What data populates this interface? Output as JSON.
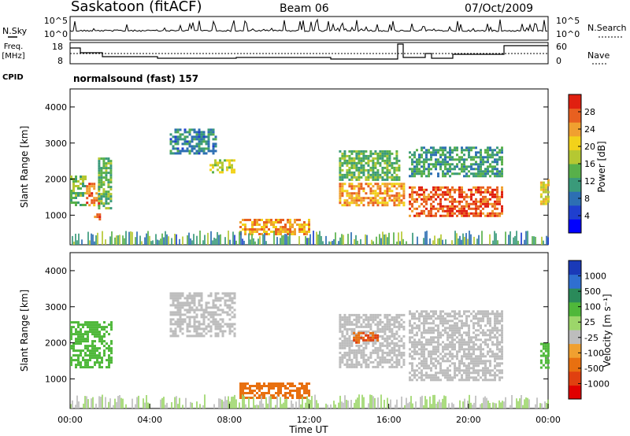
{
  "header": {
    "station": "Saskatoon (fitACF)",
    "beam": "Beam 06",
    "date": "07/Oct/2009"
  },
  "status_panels": {
    "nsky_label": "N.Sky",
    "nsearch_label": "N.Search",
    "sky_ticks": [
      "10^5",
      "10^0"
    ],
    "freq_label_1": "Freq.",
    "freq_label_2": "[MHz]",
    "freq_ticks": [
      "18",
      "8"
    ],
    "nave_label": "Nave",
    "nave_ticks": [
      "60",
      "0"
    ],
    "cpid_label": "CPID",
    "cpid_text": "normalsound (fast) 157"
  },
  "chart_data": [
    {
      "type": "heatmap",
      "name": "power",
      "xlabel": "Time UT",
      "ylabel": "Slant Range [km]",
      "xlim": [
        0,
        24
      ],
      "ylim": [
        180,
        4500
      ],
      "y_ticks": [
        "1000",
        "2000",
        "3000",
        "4000"
      ],
      "colorbar": {
        "label": "Power [dB]",
        "range": [
          0,
          32
        ],
        "tick_labels": [
          "4",
          "8",
          "12",
          "16",
          "20",
          "24",
          "28"
        ],
        "colors": [
          "#0000ff",
          "#1f3fcf",
          "#2d6fb3",
          "#3a9a7a",
          "#58b04a",
          "#b5c832",
          "#f2d21a",
          "#f0a030",
          "#e86020",
          "#e02010"
        ]
      },
      "regions": [
        {
          "t": [
            0.0,
            0.8
          ],
          "r": [
            1300,
            2100
          ],
          "v": 15
        },
        {
          "t": [
            0.8,
            1.4
          ],
          "r": [
            1300,
            1900
          ],
          "v": 26
        },
        {
          "t": [
            1.4,
            2.1
          ],
          "r": [
            1200,
            2600
          ],
          "v": 14
        },
        {
          "t": [
            1.2,
            1.6
          ],
          "r": [
            900,
            1050
          ],
          "v": 28
        },
        {
          "t": [
            5.0,
            7.3
          ],
          "r": [
            2700,
            3400
          ],
          "v": 10
        },
        {
          "t": [
            7.0,
            8.3
          ],
          "r": [
            2200,
            2550
          ],
          "v": 18
        },
        {
          "t": [
            8.5,
            12.0
          ],
          "r": [
            500,
            900
          ],
          "v": 24
        },
        {
          "t": [
            13.5,
            16.8
          ],
          "r": [
            1300,
            1900
          ],
          "v": 24
        },
        {
          "t": [
            13.5,
            16.5
          ],
          "r": [
            2000,
            2800
          ],
          "v": 14
        },
        {
          "t": [
            17.0,
            21.7
          ],
          "r": [
            1000,
            1800
          ],
          "v": 28
        },
        {
          "t": [
            17.0,
            21.7
          ],
          "r": [
            2100,
            2900
          ],
          "v": 12
        },
        {
          "t": [
            23.6,
            24.0
          ],
          "r": [
            1300,
            2000
          ],
          "v": 20
        }
      ]
    },
    {
      "type": "heatmap",
      "name": "velocity",
      "xlabel": "Time UT",
      "ylabel": "Slant Range [km]",
      "xlim": [
        0,
        24
      ],
      "ylim": [
        180,
        4500
      ],
      "y_ticks": [
        "1000",
        "2000",
        "3000",
        "4000"
      ],
      "x_ticks": [
        "00:00",
        "04:00",
        "08:00",
        "12:00",
        "16:00",
        "20:00",
        "00:00"
      ],
      "colorbar": {
        "label": "Velocity [m s⁻¹]",
        "tick_labels": [
          "1000",
          "500",
          "100",
          "25",
          "-25",
          "-100",
          "-500",
          "-1000"
        ],
        "colors": [
          "#1a3ab8",
          "#2f6fd0",
          "#2a8a5a",
          "#4fb83a",
          "#9cd66a",
          "#bdbdbd",
          "#f0a030",
          "#e87010",
          "#e04010",
          "#e00000"
        ]
      },
      "regions": [
        {
          "t": [
            0.0,
            2.1
          ],
          "r": [
            1300,
            2600
          ],
          "v": 60
        },
        {
          "t": [
            5.0,
            8.3
          ],
          "r": [
            2200,
            3400
          ],
          "v": 0
        },
        {
          "t": [
            8.5,
            12.0
          ],
          "r": [
            500,
            900
          ],
          "v": -120
        },
        {
          "t": [
            13.5,
            16.8
          ],
          "r": [
            1300,
            2800
          ],
          "v": 0
        },
        {
          "t": [
            14.2,
            15.5
          ],
          "r": [
            2000,
            2300
          ],
          "v": -300
        },
        {
          "t": [
            17.0,
            21.7
          ],
          "r": [
            1000,
            2900
          ],
          "v": 0
        },
        {
          "t": [
            23.6,
            24.0
          ],
          "r": [
            1300,
            2000
          ],
          "v": 60
        }
      ]
    }
  ]
}
